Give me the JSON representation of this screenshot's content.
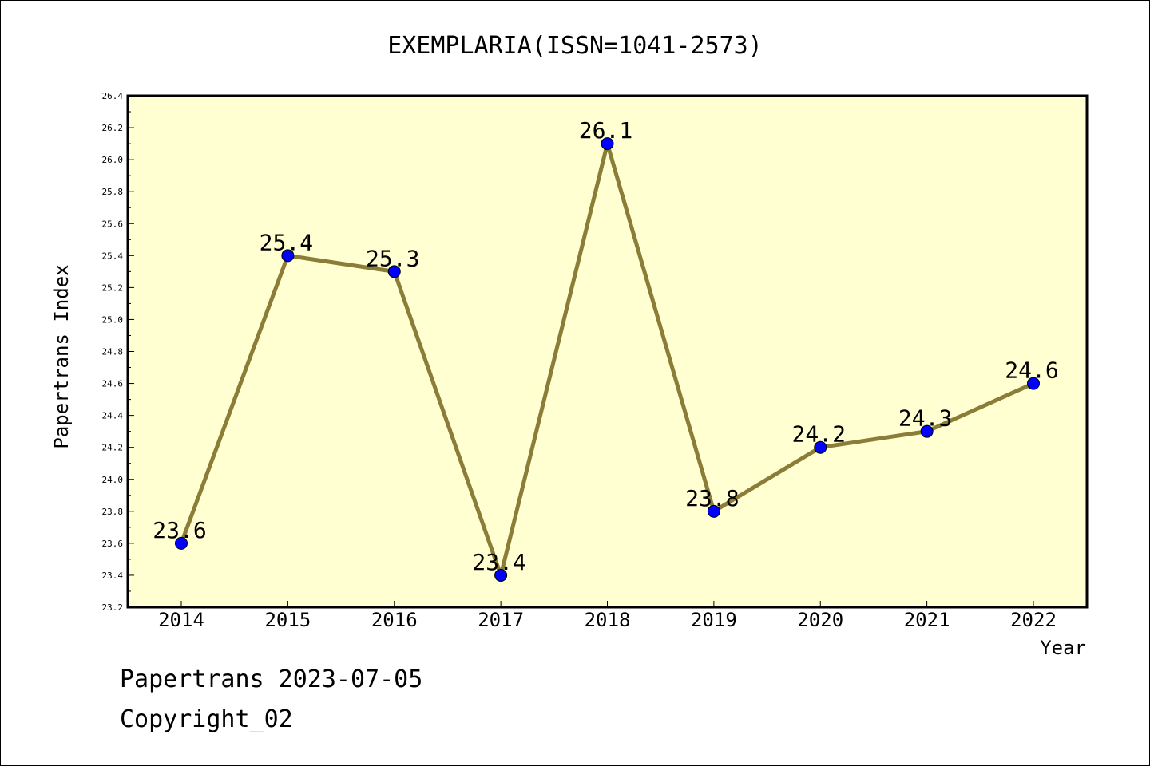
{
  "chart_data": {
    "type": "line",
    "title": "EXEMPLARIA(ISSN=1041-2573)",
    "xlabel": "Year",
    "ylabel": "Papertrans Index",
    "categories": [
      "2014",
      "2015",
      "2016",
      "2017",
      "2018",
      "2019",
      "2020",
      "2021",
      "2022"
    ],
    "series": [
      {
        "values": [
          23.6,
          25.4,
          25.3,
          23.4,
          26.1,
          23.8,
          24.2,
          24.3,
          24.6
        ]
      }
    ],
    "data_labels": [
      "23.6",
      "25.4",
      "25.3",
      "23.4",
      "26.1",
      "23.8",
      "24.2",
      "24.3",
      "24.6"
    ],
    "ylim": [
      23.2,
      26.4
    ],
    "yticks": [
      "23.2",
      "23.4",
      "23.6",
      "23.8",
      "24.0",
      "24.2",
      "24.4",
      "24.6",
      "24.8",
      "25.0",
      "25.2",
      "25.4",
      "25.6",
      "25.8",
      "26.0",
      "26.2",
      "26.4"
    ],
    "grid": false,
    "colors": {
      "plot_background": "#ffffd2",
      "line": "#8b7d37",
      "marker": "#0000ff"
    }
  },
  "footer": {
    "line1": "Papertrans 2023-07-05",
    "line2": "Copyright_02"
  }
}
